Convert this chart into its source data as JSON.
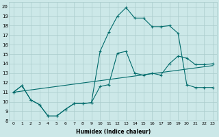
{
  "xlabel": "Humidex (Indice chaleur)",
  "bg_color": "#cce8e8",
  "grid_color": "#aacccc",
  "line_color": "#006b6b",
  "xlim": [
    -0.5,
    23.5
  ],
  "ylim": [
    8,
    20.5
  ],
  "xticks": [
    0,
    1,
    2,
    3,
    4,
    5,
    6,
    7,
    8,
    9,
    10,
    11,
    12,
    13,
    14,
    15,
    16,
    17,
    18,
    19,
    20,
    21,
    22,
    23
  ],
  "yticks": [
    8,
    9,
    10,
    11,
    12,
    13,
    14,
    15,
    16,
    17,
    18,
    19,
    20
  ],
  "line1_x": [
    0,
    1,
    2,
    3,
    4,
    5,
    6,
    7,
    8,
    9,
    10,
    11,
    12,
    13,
    14,
    15,
    16,
    17,
    18,
    19,
    20,
    21,
    22,
    23
  ],
  "line1_y": [
    11.0,
    11.7,
    10.2,
    9.7,
    8.5,
    8.5,
    9.2,
    9.8,
    9.8,
    9.9,
    15.3,
    17.3,
    19.0,
    19.9,
    18.8,
    18.8,
    17.9,
    17.9,
    18.0,
    17.2,
    11.8,
    11.5,
    11.5,
    11.5
  ],
  "line2_x": [
    0,
    1,
    2,
    3,
    4,
    5,
    6,
    7,
    8,
    9,
    10,
    11,
    12,
    13,
    14,
    15,
    16,
    17,
    18,
    19,
    20,
    21,
    22,
    23
  ],
  "line2_y": [
    11.0,
    11.7,
    10.2,
    9.7,
    8.5,
    8.5,
    9.2,
    9.8,
    9.8,
    9.9,
    11.6,
    11.8,
    15.1,
    15.3,
    13.0,
    12.8,
    13.0,
    12.8,
    14.0,
    14.8,
    14.6,
    13.9,
    13.9,
    14.0
  ],
  "line3_x": [
    0,
    23
  ],
  "line3_y": [
    11.0,
    13.8
  ]
}
